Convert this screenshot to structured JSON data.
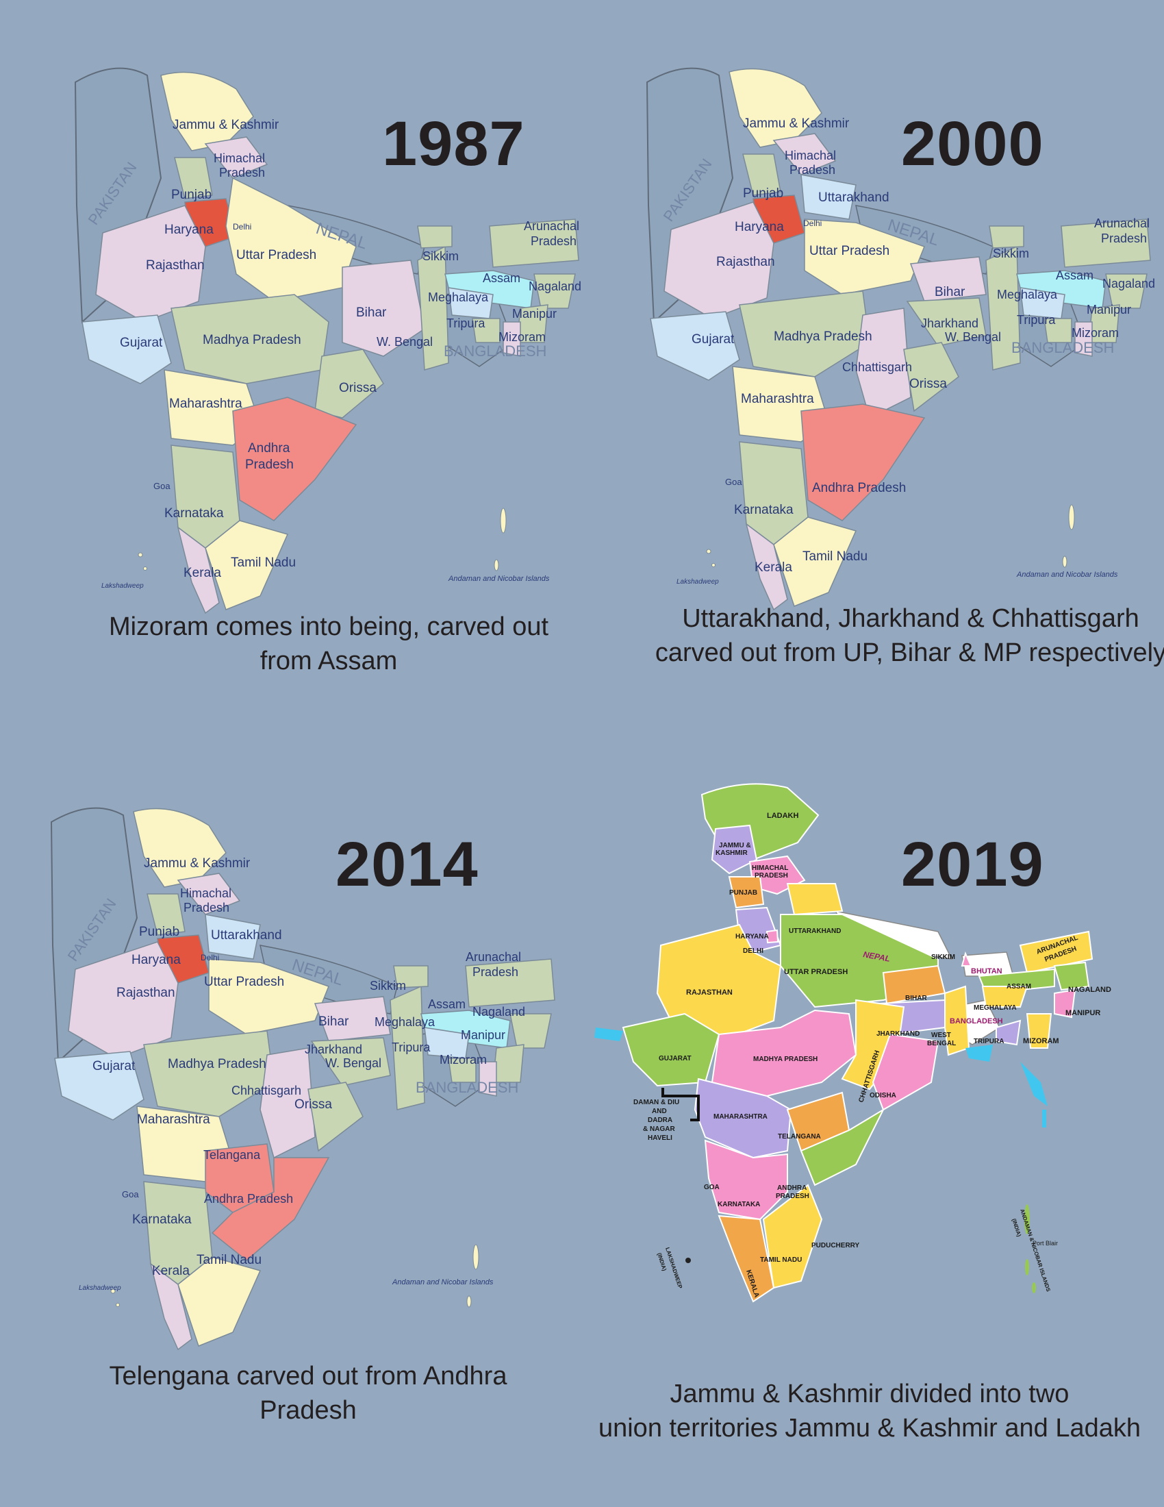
{
  "panels": [
    {
      "year": "1987",
      "caption": [
        "Mizoram comes into being, carved out",
        "from Assam"
      ],
      "countries": [
        "PAKISTAN",
        "NEPAL",
        "BANGLADESH"
      ],
      "labels": {
        "jk": "Jammu & Kashmir",
        "hp": [
          "Himachal",
          "Pradesh"
        ],
        "pb": "Punjab",
        "hr": "Haryana",
        "dl": "Delhi",
        "rj": "Rajasthan",
        "up": "Uttar Pradesh",
        "sk": "Sikkim",
        "ar": [
          "Arunachal",
          "Pradesh"
        ],
        "as": "Assam",
        "ng": "Nagaland",
        "ml": "Meghalaya",
        "mn": "Manipur",
        "tr": "Tripura",
        "mz": "Mizoram",
        "br": "Bihar",
        "wb": "W. Bengal",
        "gj": "Gujarat",
        "mp": "Madhya Pradesh",
        "or": "Orissa",
        "mh": "Maharashtra",
        "ap": [
          "Andhra",
          "Pradesh"
        ],
        "ga": "Goa",
        "ka": "Karnataka",
        "kl": "Kerala",
        "tn": "Tamil Nadu",
        "ld": "Lakshadweep",
        "an": "Andaman and Nicobar Islands"
      }
    },
    {
      "year": "2000",
      "caption": [
        "Uttarakhand, Jharkhand & Chhattisgarh",
        "carved out from UP, Bihar & MP respectively"
      ],
      "countries": [
        "PAKISTAN",
        "NEPAL",
        "BANGLADESH"
      ],
      "labels": {
        "jk": "Jammu & Kashmir",
        "hp": [
          "Himachal",
          "Pradesh"
        ],
        "pb": "Punjab",
        "uk": "Uttarakhand",
        "hr": "Haryana",
        "dl": "Delhi",
        "rj": "Rajasthan",
        "up": "Uttar Pradesh",
        "sk": "Sikkim",
        "ar": [
          "Arunachal",
          "Pradesh"
        ],
        "as": "Assam",
        "ng": "Nagaland",
        "ml": "Meghalaya",
        "mn": "Manipur",
        "tr": "Tripura",
        "mz": "Mizoram",
        "br": "Bihar",
        "jh": "Jharkhand",
        "wb": "W. Bengal",
        "gj": "Gujarat",
        "mp": "Madhya Pradesh",
        "cg": "Chhattisgarh",
        "or": "Orissa",
        "mh": "Maharashtra",
        "ap": "Andhra Pradesh",
        "ga": "Goa",
        "ka": "Karnataka",
        "kl": "Kerala",
        "tn": "Tamil Nadu",
        "ld": "Lakshadweep",
        "an": "Andaman and Nicobar Islands"
      }
    },
    {
      "year": "2014",
      "caption": [
        "Telengana carved out from Andhra",
        "Pradesh"
      ],
      "countries": [
        "PAKISTAN",
        "NEPAL",
        "BANGLADESH"
      ],
      "labels": {
        "jk": "Jammu & Kashmir",
        "hp": [
          "Himachal",
          "Pradesh"
        ],
        "pb": "Punjab",
        "uk": "Uttarakhand",
        "hr": "Haryana",
        "dl": "Delhi",
        "rj": "Rajasthan",
        "up": "Uttar Pradesh",
        "sk": "Sikkim",
        "ar": [
          "Arunachal",
          "Pradesh"
        ],
        "as": "Assam",
        "ng": "Nagaland",
        "ml": "Meghalaya",
        "mn": "Manipur",
        "tr": "Tripura",
        "mz": "Mizoram",
        "br": "Bihar",
        "jh": "Jharkhand",
        "wb": "W. Bengal",
        "gj": "Gujarat",
        "mp": "Madhya Pradesh",
        "cg": "Chhattisgarh",
        "or": "Orissa",
        "mh": "Maharashtra",
        "tg": "Telangana",
        "ap": "Andhra Pradesh",
        "ga": "Goa",
        "ka": "Karnataka",
        "kl": "Kerala",
        "tn": "Tamil Nadu",
        "ld": "Lakshadweep",
        "an": "Andaman and Nicobar Islands"
      }
    },
    {
      "year": "2019",
      "caption": [
        "Jammu & Kashmir divided into two",
        "union territories Jammu & Kashmir and Ladakh"
      ],
      "labels": {
        "la": "LADAKH",
        "jk": [
          "JAMMU &",
          "KASHMIR"
        ],
        "hp": [
          "HIMACHAL",
          "PRADESH"
        ],
        "pb": "PUNJAB",
        "uk": "UTTARAKHAND",
        "hr": "HARYANA",
        "dl": "DELHI",
        "rj": "RAJASTHAN",
        "up": "UTTAR PRADESH",
        "np": "NEPAL",
        "sk": "SIKKIM",
        "bt": "BHUTAN",
        "ar": [
          "ARUNACHAL",
          "PRADESH"
        ],
        "as": "ASSAM",
        "ng": "NAGALAND",
        "ml": "MEGHALAYA",
        "bd": "BANGLADESH",
        "mn": "MANIPUR",
        "tr": "TRIPURA",
        "mz": "MIZORAM",
        "br": "BIHAR",
        "jh": "JHARKHAND",
        "wb": [
          "WEST",
          "BENGAL"
        ],
        "gj": "GUJARAT",
        "mp": "MADHYA PRADESH",
        "cg": "CHHATTISGARH",
        "od": "ODISHA",
        "dd": [
          "DAMAN & DIU",
          "AND",
          "DADRA",
          "& NAGAR",
          "HAVELI"
        ],
        "mh": "MAHARASHTRA",
        "tg": "TELANGANA",
        "ga": "GOA",
        "ap": [
          "ANDHRA",
          "PRADESH"
        ],
        "ka": "KARNATAKA",
        "kl": "KERALA",
        "tn": "TAMIL NADU",
        "py": "PUDUCHERRY",
        "ld": [
          "LAKSHADWEEP",
          "(INDIA)"
        ],
        "an": [
          "ANDAMAN & NICOBAR ISLANDS",
          "(INDIA)"
        ],
        "pbl": "Port Blair"
      }
    }
  ],
  "colors": {
    "background": "#94a9bf",
    "neighbor": "#8fa5bb",
    "cream": "#fbf5c6",
    "green": "#c8d6b4",
    "pink": "#e6d4e4",
    "blue": "#cce4f5",
    "cyan": "#aef0f6",
    "highlight_red": "#e4553f",
    "highlight_salmon": "#f28a85",
    "pol_yellow": "#fcd84d",
    "pol_green": "#99c955",
    "pol_pink": "#f494c8",
    "pol_lavender": "#b5a5e3",
    "pol_orange": "#f2a64a"
  }
}
